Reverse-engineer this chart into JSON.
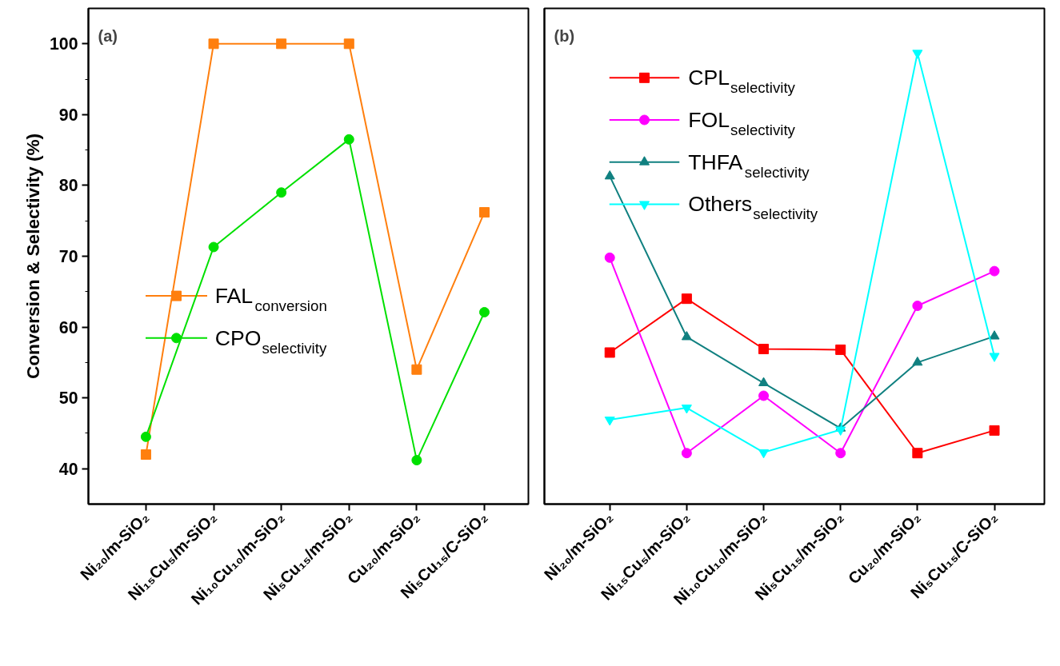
{
  "chart_data": [
    {
      "type": "line",
      "annotations": [
        "(a)"
      ],
      "ylabel": "Conversion & Selectivity (%)",
      "categories": [
        "Ni₂₀/m-SiO₂",
        "Ni₁₅Cu₅/m-SiO₂",
        "Ni₁₀Cu₁₀/m-SiO₂",
        "Ni₅Cu₁₅/m-SiO₂",
        "Cu₂₀/m-SiO₂",
        "Ni₅Cu₁₅/C-SiO₂"
      ],
      "ylim": [
        35,
        105
      ],
      "yticks": [
        40,
        50,
        60,
        70,
        80,
        90,
        100
      ],
      "legend": "center left",
      "series": [
        {
          "name": "FAL$_{conversion}$",
          "color": "#ff7f0e",
          "marker": "square",
          "values": [
            42,
            100,
            100,
            100,
            54,
            76.2
          ]
        },
        {
          "name": "CPO$_{selectivity}$",
          "color": "#00e000",
          "marker": "circle",
          "values": [
            44.5,
            71.3,
            79,
            86.5,
            41.2,
            62.1
          ]
        }
      ]
    },
    {
      "type": "line",
      "annotations": [
        "(b)"
      ],
      "categories": [
        "Ni₂₀/m-SiO₂",
        "Ni₁₅Cu₅/m-SiO₂",
        "Ni₁₀Cu₁₀/m-SiO₂",
        "Ni₅Cu₁₅/m-SiO₂",
        "Cu₂₀/m-SiO₂",
        "Ni₅Cu₁₅/C-SiO₂"
      ],
      "ylim": [
        35,
        105
      ],
      "tick_labels": "x",
      "legend": "top left",
      "series": [
        {
          "name": "CPL$_{selectivity}$",
          "color": "#ff0000",
          "marker": "square",
          "values": [
            56.4,
            64,
            56.9,
            56.8,
            42.2,
            45.4
          ]
        },
        {
          "name": "FOL$_{selectivity}$",
          "color": "#ff00ff",
          "marker": "circle",
          "values": [
            69.8,
            42.2,
            50.3,
            42.2,
            63,
            67.9
          ]
        },
        {
          "name": "THFA$_{selectivity}$",
          "color": "#108080",
          "marker": "triangle",
          "values": [
            81.3,
            58.6,
            52.1,
            45.7,
            55,
            58.7
          ]
        },
        {
          "name": "Others$_{selectivity}$",
          "color": "#00ffff",
          "marker": "triangle_down",
          "values": [
            46.9,
            48.6,
            42.3,
            45.5,
            98.7,
            55.9
          ]
        }
      ]
    }
  ]
}
